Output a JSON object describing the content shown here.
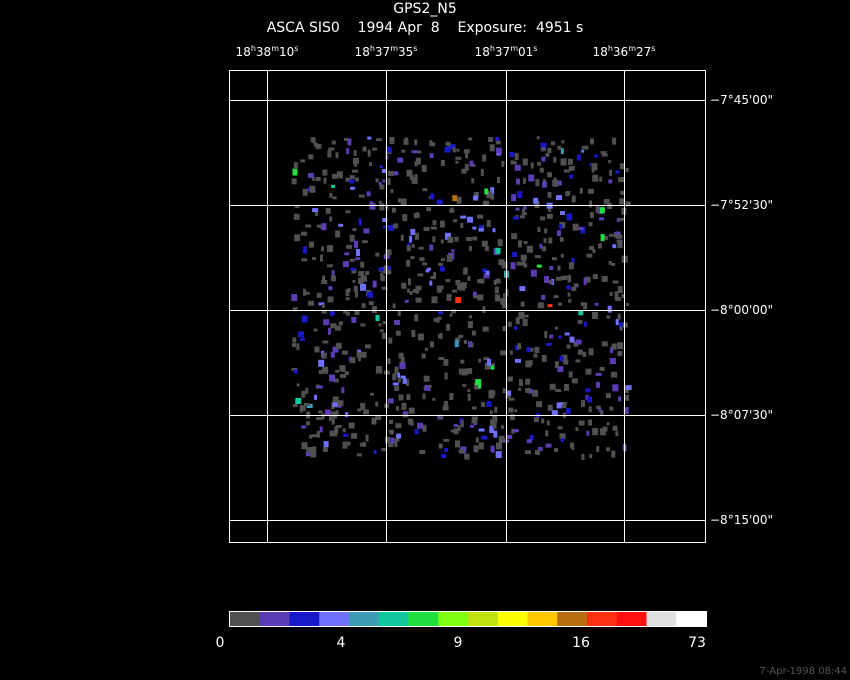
{
  "title": "GPS2_N5",
  "subtitle": "ASCA SIS0    1994 Apr  8    Exposure:  4951 s",
  "ra_ticks": [
    {
      "h": "18",
      "m": "38",
      "s": "10"
    },
    {
      "h": "18",
      "m": "37",
      "s": "35"
    },
    {
      "h": "18",
      "m": "37",
      "s": "01"
    },
    {
      "h": "18",
      "m": "36",
      "s": "27"
    }
  ],
  "dec_ticks": [
    "−7°45'00\"",
    "−7°52'30\"",
    "−8°00'00\"",
    "−8°07'30\"",
    "−8°15'00\""
  ],
  "colorbar": {
    "colors": [
      "#505050",
      "#5c3cb4",
      "#1818c8",
      "#7070ff",
      "#3c9cb4",
      "#10c89c",
      "#20e040",
      "#80ff10",
      "#c0e010",
      "#ffff00",
      "#ffc800",
      "#b86e10",
      "#ff3010",
      "#ff1010",
      "#e0e0e0",
      "#ffffff"
    ],
    "labels": [
      "0",
      "4",
      "9",
      "16",
      "73"
    ],
    "label_bin_positions": [
      0,
      4,
      8,
      12,
      16
    ]
  },
  "timestamp": "7-Apr-1998 08:44"
}
